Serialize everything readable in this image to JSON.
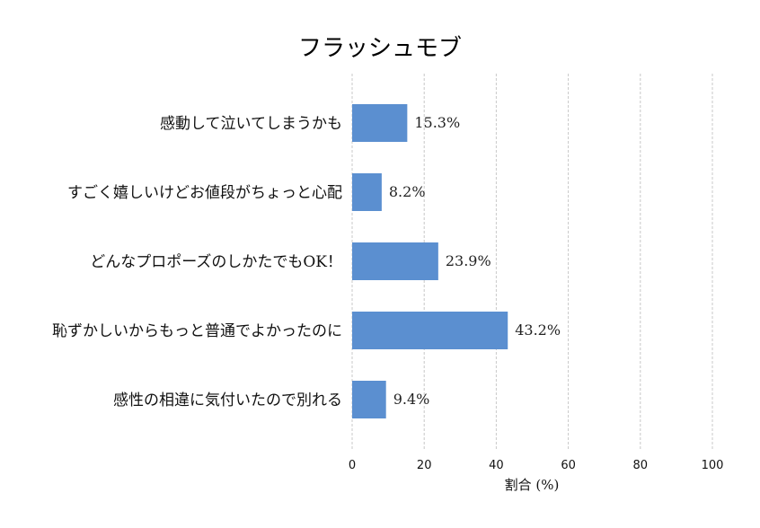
{
  "chart_data": {
    "type": "bar",
    "orientation": "horizontal",
    "title": "フラッシュモブ",
    "xlabel": "割合 (%)",
    "ylabel": "",
    "xlim": [
      0,
      100
    ],
    "xticks": [
      "0",
      "20",
      "40",
      "60",
      "80",
      "100"
    ],
    "grid": true,
    "categories": [
      "感動して泣いてしまうかも",
      "すごく嬉しいけどお値段がちょっと心配",
      "どんなプロポーズのしかたでもOK！",
      "恥ずかしいからもっと普通でよかったのに",
      "感性の相違に気付いたので別れる"
    ],
    "values": [
      15.3,
      8.2,
      23.9,
      43.2,
      9.4
    ],
    "value_labels": [
      "15.3%",
      "8.2%",
      "23.9%",
      "43.2%",
      "9.4%"
    ],
    "bar_color": "#5b8fd0"
  }
}
